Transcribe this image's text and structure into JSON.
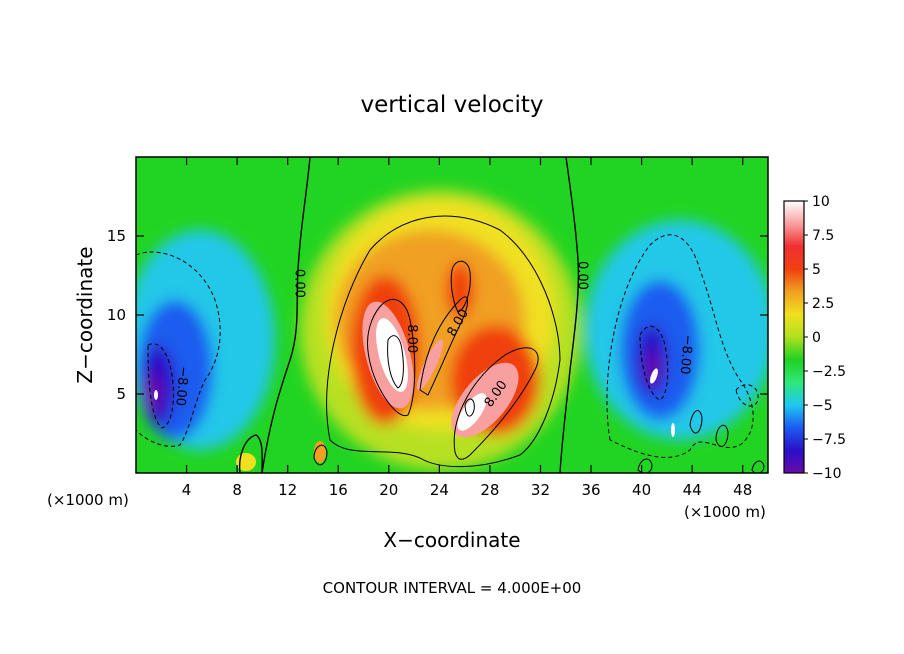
{
  "chart_data": {
    "type": "heatmap",
    "title": "vertical velocity",
    "xlabel": "X−coordinate",
    "ylabel": "Z−coordinate",
    "x_unit_left": "(×1000 m)",
    "x_unit_right": "(×1000 m)",
    "footer": "CONTOUR INTERVAL = 4.000E+00",
    "xlim": [
      0,
      50
    ],
    "ylim": [
      0,
      20
    ],
    "xticks": [
      4,
      8,
      12,
      16,
      20,
      24,
      28,
      32,
      36,
      40,
      44,
      48
    ],
    "yticks": [
      5,
      10,
      15
    ],
    "zlim": [
      -10,
      10
    ],
    "colorbar_ticks": [
      10,
      7.5,
      5,
      2.5,
      0,
      -2.5,
      -5,
      -7.5,
      -10
    ],
    "colorbar_tick_labels": [
      "10",
      "7.5",
      "5",
      "2.5",
      "0",
      "−2.5",
      "−5",
      "−7.5",
      "−10"
    ],
    "colorbar_colors": [
      "#6a0aa8",
      "#2a10c8",
      "#1c5cf0",
      "#20c8f0",
      "#2ee87a",
      "#22d022",
      "#b0e020",
      "#f0e020",
      "#f0a020",
      "#f04010",
      "#f03030",
      "#f8a0a0",
      "#ffffff"
    ],
    "contour_labels": [
      {
        "text": "0.00",
        "x": 12.9,
        "y": 12.0,
        "rotate": 90
      },
      {
        "text": "0.00",
        "x": 35.3,
        "y": 12.5,
        "rotate": 90
      },
      {
        "text": "8.00",
        "x": 21.8,
        "y": 8.5,
        "rotate": 90
      },
      {
        "text": "8.00",
        "x": 25.5,
        "y": 9.5,
        "rotate": -60
      },
      {
        "text": "8.00",
        "x": 28.5,
        "y": 5.0,
        "rotate": -55
      },
      {
        "text": "−8.00",
        "x": 3.6,
        "y": 5.5,
        "rotate": 95
      },
      {
        "text": "−8.00",
        "x": 43.5,
        "y": 7.5,
        "rotate": 95
      }
    ]
  }
}
